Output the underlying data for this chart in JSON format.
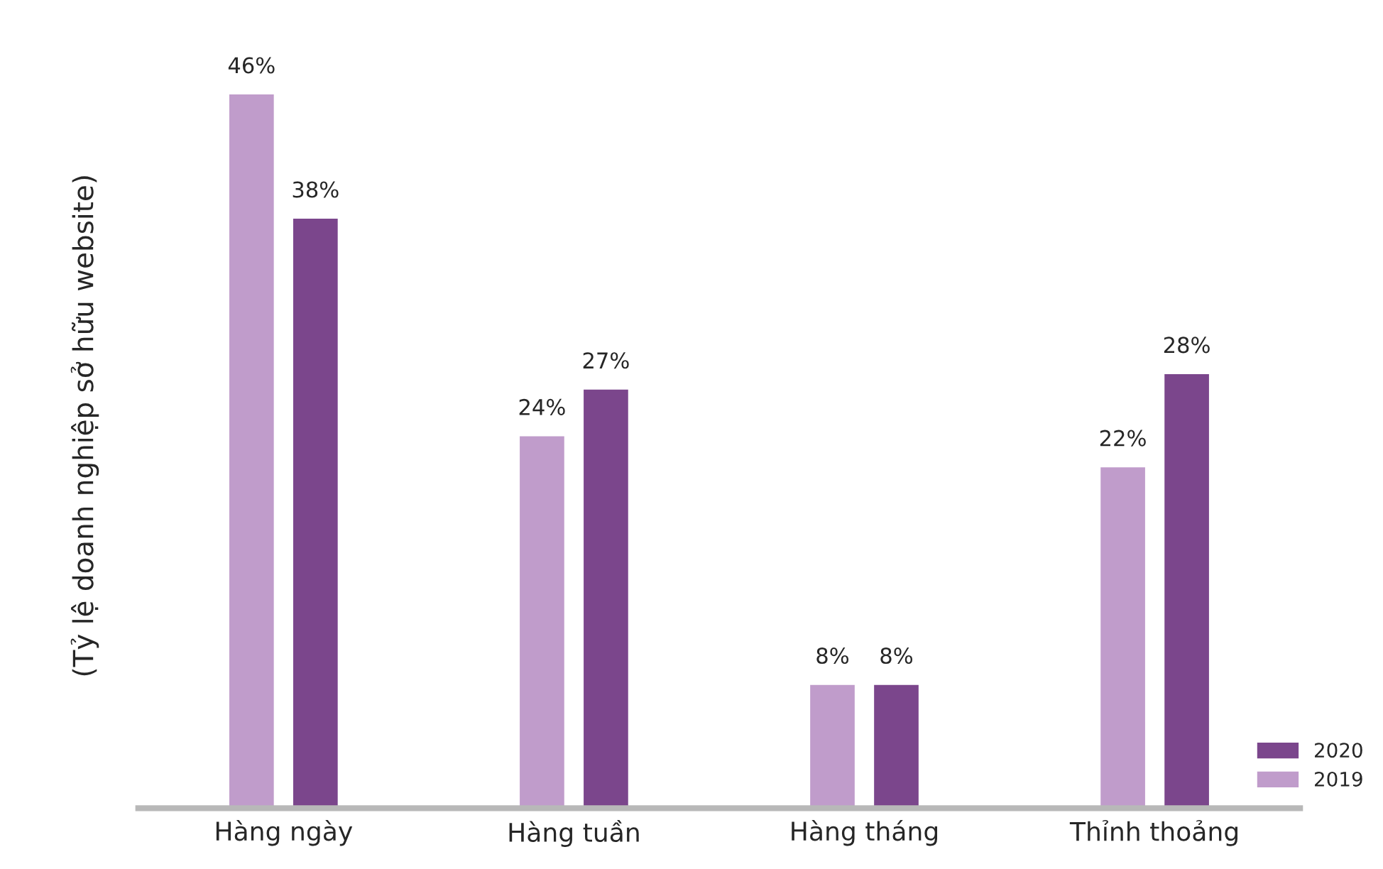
{
  "chart_data": {
    "type": "bar",
    "ylabel": "(Tỷ lệ doanh nghiệp sở hữu website)",
    "categories": [
      "Hàng ngày",
      "Hàng tuần",
      "Hàng tháng",
      "Thỉnh thoảng"
    ],
    "series": [
      {
        "name": "2019",
        "color": "#c09ccb",
        "values": [
          46,
          24,
          8,
          22
        ],
        "value_labels": [
          "46%",
          "24%",
          "8%",
          "22%"
        ]
      },
      {
        "name": "2020",
        "color": "#7b468c",
        "values": [
          38,
          27,
          8,
          28
        ],
        "value_labels": [
          "38%",
          "27%",
          "8%",
          "28%"
        ]
      }
    ],
    "legend": "bottom right",
    "grid": false
  }
}
